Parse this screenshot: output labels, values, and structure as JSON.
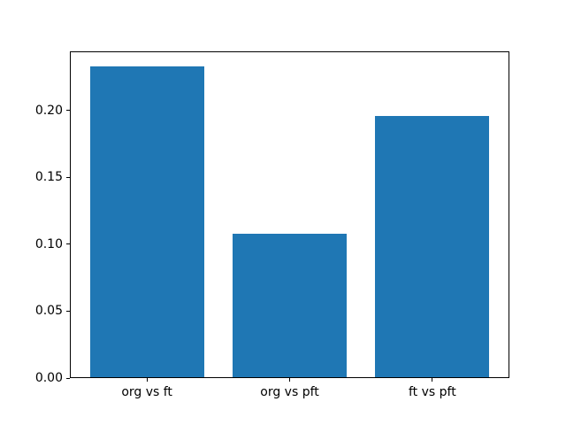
{
  "chart_data": {
    "type": "bar",
    "categories": [
      "org vs ft",
      "org vs pft",
      "ft vs pft"
    ],
    "x": [
      0,
      1,
      2
    ],
    "values": [
      0.233,
      0.108,
      0.196
    ],
    "bar_color": "#1f77b4",
    "bar_width": 0.8,
    "title": "",
    "xlabel": "",
    "ylabel": "",
    "xlim": [
      -0.54,
      2.54
    ],
    "ylim": [
      0,
      0.244
    ],
    "yticks": [
      0,
      0.05,
      0.1,
      0.15,
      0.2
    ],
    "ytick_labels": [
      "0.00",
      "0.05",
      "0.10",
      "0.15",
      "0.20"
    ],
    "grid": false,
    "legend": false,
    "background_color": "#ffffff",
    "spine_color": "#000000"
  }
}
